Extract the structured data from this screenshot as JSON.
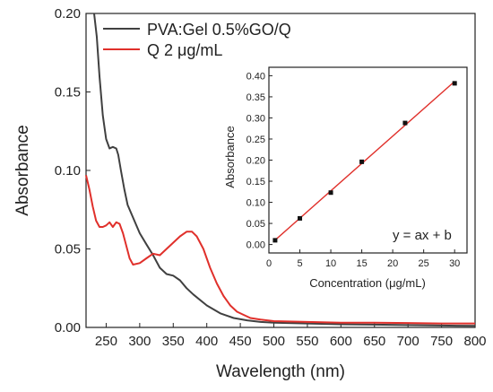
{
  "chart_data": [
    {
      "type": "line",
      "title": "",
      "xlabel": "Wavelength (nm)",
      "ylabel": "Absorbance",
      "xlim": [
        220,
        800
      ],
      "ylim": [
        0,
        0.2
      ],
      "xticks": [
        "250",
        "300",
        "350",
        "400",
        "450",
        "500",
        "550",
        "600",
        "650",
        "700",
        "750",
        "800"
      ],
      "yticks": [
        "0.00",
        "0.05",
        "0.10",
        "0.15",
        "0.20"
      ],
      "legend_position": "top-left",
      "grid": false,
      "series": [
        {
          "name": "PVA:Gel 0.5%GO/Q",
          "color": "#404040",
          "x": [
            232,
            236,
            240,
            245,
            250,
            255,
            260,
            265,
            268,
            272,
            277,
            282,
            290,
            300,
            310,
            320,
            330,
            340,
            350,
            360,
            370,
            380,
            400,
            420,
            440,
            460,
            480,
            500,
            550,
            600,
            650,
            700,
            750,
            800
          ],
          "y": [
            0.2,
            0.185,
            0.16,
            0.135,
            0.12,
            0.114,
            0.115,
            0.114,
            0.11,
            0.1,
            0.088,
            0.078,
            0.07,
            0.06,
            0.053,
            0.046,
            0.038,
            0.034,
            0.033,
            0.03,
            0.025,
            0.021,
            0.014,
            0.009,
            0.006,
            0.0045,
            0.0035,
            0.003,
            0.0025,
            0.002,
            0.0018,
            0.0015,
            0.0012,
            0.001
          ]
        },
        {
          "name": "Q 2 μg/mL",
          "color": "#e0302b",
          "x": [
            220,
            225,
            230,
            235,
            240,
            245,
            250,
            255,
            260,
            265,
            270,
            275,
            280,
            285,
            290,
            300,
            310,
            320,
            330,
            340,
            350,
            360,
            370,
            378,
            385,
            395,
            405,
            415,
            425,
            435,
            445,
            455,
            465,
            480,
            500,
            550,
            600,
            650,
            700,
            750,
            800
          ],
          "y": [
            0.097,
            0.088,
            0.077,
            0.068,
            0.064,
            0.064,
            0.065,
            0.067,
            0.064,
            0.067,
            0.066,
            0.06,
            0.052,
            0.044,
            0.04,
            0.041,
            0.044,
            0.047,
            0.046,
            0.05,
            0.054,
            0.058,
            0.061,
            0.061,
            0.058,
            0.05,
            0.038,
            0.028,
            0.02,
            0.014,
            0.01,
            0.008,
            0.006,
            0.005,
            0.004,
            0.0035,
            0.003,
            0.003,
            0.0028,
            0.0025,
            0.0025
          ]
        }
      ]
    },
    {
      "type": "scatter",
      "title": "",
      "xlabel": "Concentration (μg/mL)",
      "ylabel": "Absorbance",
      "xlim": [
        0,
        32
      ],
      "ylim": [
        -0.02,
        0.42
      ],
      "xticks": [
        "0",
        "5",
        "10",
        "15",
        "20",
        "25",
        "30"
      ],
      "yticks": [
        "0.00",
        "0.05",
        "0.10",
        "0.15",
        "0.20",
        "0.25",
        "0.30",
        "0.35",
        "0.40"
      ],
      "annotation": "y = ax + b",
      "grid": false,
      "series": [
        {
          "x": [
            1,
            5,
            10,
            15,
            22,
            30
          ],
          "y": [
            0.01,
            0.062,
            0.123,
            0.196,
            0.288,
            0.382
          ],
          "fit_color": "#e0302b"
        }
      ]
    }
  ]
}
